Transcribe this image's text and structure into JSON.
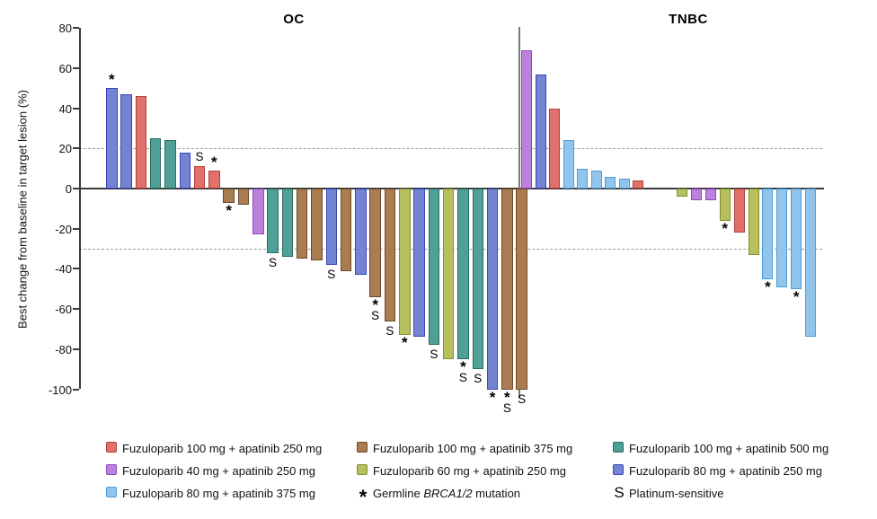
{
  "chart_data": {
    "type": "bar",
    "subtype": "waterfall",
    "title": "",
    "ylabel": "Best change from baseline in target lesion (%)",
    "ylim": [
      -100,
      80
    ],
    "yticks": [
      80,
      60,
      40,
      20,
      0,
      -20,
      -40,
      -60,
      -80,
      -100
    ],
    "reference_lines": [
      20,
      -30
    ],
    "grid": false,
    "legend_position": "bottom",
    "annotation_meanings": {
      "*": "Germline BRCA1/2 mutation",
      "S": "Platinum-sensitive"
    },
    "treatments": {
      "red": "Fuzuloparib 100 mg + apatinib 250 mg",
      "purple": "Fuzuloparib 40 mg + apatinib 250 mg",
      "lightblue": "Fuzuloparib 80 mg + apatinib 375 mg",
      "brown": "Fuzuloparib 100 mg + apatinib 375 mg",
      "yellow": "Fuzuloparib 60 mg + apatinib 250 mg",
      "teal": "Fuzuloparib 100 mg + apatinib 500 mg",
      "blue": "Fuzuloparib 80 mg + apatinib 250 mg"
    },
    "colors": {
      "red": {
        "fill": "#E0716A",
        "border": "#B23F3A"
      },
      "purple": {
        "fill": "#BC82DB",
        "border": "#8F44C4"
      },
      "lightblue": {
        "fill": "#92C5EC",
        "border": "#4D9CD8"
      },
      "brown": {
        "fill": "#A97D51",
        "border": "#6F4A28"
      },
      "yellow": {
        "fill": "#B7C05F",
        "border": "#848E2E"
      },
      "teal": {
        "fill": "#4FA096",
        "border": "#2A6B60"
      },
      "blue": {
        "fill": "#7584D2",
        "border": "#3847BE"
      }
    },
    "panels": [
      {
        "title": "OC",
        "bars": [
          {
            "value": 50,
            "color": "blue",
            "annotation": "*"
          },
          {
            "value": 47,
            "color": "blue",
            "annotation": ""
          },
          {
            "value": 46,
            "color": "red",
            "annotation": ""
          },
          {
            "value": 25,
            "color": "teal",
            "annotation": ""
          },
          {
            "value": 24,
            "color": "teal",
            "annotation": ""
          },
          {
            "value": 18,
            "color": "blue",
            "annotation": ""
          },
          {
            "value": 11,
            "color": "red",
            "annotation": "S"
          },
          {
            "value": 9,
            "color": "red",
            "annotation": "*"
          },
          {
            "value": -7,
            "color": "brown",
            "annotation": "*"
          },
          {
            "value": -8,
            "color": "brown",
            "annotation": ""
          },
          {
            "value": -23,
            "color": "purple",
            "annotation": ""
          },
          {
            "value": -32,
            "color": "teal",
            "annotation": "S"
          },
          {
            "value": -34,
            "color": "teal",
            "annotation": ""
          },
          {
            "value": -35,
            "color": "brown",
            "annotation": ""
          },
          {
            "value": -36,
            "color": "brown",
            "annotation": ""
          },
          {
            "value": -38,
            "color": "blue",
            "annotation": "S"
          },
          {
            "value": -41,
            "color": "brown",
            "annotation": ""
          },
          {
            "value": -43,
            "color": "blue",
            "annotation": ""
          },
          {
            "value": -54,
            "color": "brown",
            "annotation": "*S"
          },
          {
            "value": -66,
            "color": "brown",
            "annotation": "S"
          },
          {
            "value": -73,
            "color": "yellow",
            "annotation": "*"
          },
          {
            "value": -74,
            "color": "blue",
            "annotation": ""
          },
          {
            "value": -78,
            "color": "teal",
            "annotation": "S"
          },
          {
            "value": -85,
            "color": "yellow",
            "annotation": ""
          },
          {
            "value": -85,
            "color": "teal",
            "annotation": "*S"
          },
          {
            "value": -90,
            "color": "teal",
            "annotation": "S"
          },
          {
            "value": -100,
            "color": "blue",
            "annotation": "*"
          },
          {
            "value": -100,
            "color": "brown",
            "annotation": "*S"
          },
          {
            "value": -100,
            "color": "brown",
            "annotation": "S"
          }
        ]
      },
      {
        "title": "TNBC",
        "bars": [
          {
            "value": 69,
            "color": "purple",
            "annotation": ""
          },
          {
            "value": 57,
            "color": "blue",
            "annotation": ""
          },
          {
            "value": 40,
            "color": "red",
            "annotation": ""
          },
          {
            "value": 24,
            "color": "lightblue",
            "annotation": ""
          },
          {
            "value": 10,
            "color": "lightblue",
            "annotation": ""
          },
          {
            "value": 9,
            "color": "lightblue",
            "annotation": ""
          },
          {
            "value": 6,
            "color": "lightblue",
            "annotation": ""
          },
          {
            "value": 5,
            "color": "lightblue",
            "annotation": ""
          },
          {
            "value": 4,
            "color": "red",
            "annotation": ""
          },
          {
            "value": -4,
            "color": "yellow",
            "annotation": "",
            "gap_before": true
          },
          {
            "value": -6,
            "color": "purple",
            "annotation": ""
          },
          {
            "value": -6,
            "color": "purple",
            "annotation": ""
          },
          {
            "value": -16,
            "color": "yellow",
            "annotation": "*"
          },
          {
            "value": -22,
            "color": "red",
            "annotation": ""
          },
          {
            "value": -33,
            "color": "yellow",
            "annotation": ""
          },
          {
            "value": -45,
            "color": "lightblue",
            "annotation": "*"
          },
          {
            "value": -49,
            "color": "lightblue",
            "annotation": ""
          },
          {
            "value": -50,
            "color": "lightblue",
            "annotation": "*"
          },
          {
            "value": -74,
            "color": "lightblue",
            "annotation": ""
          }
        ]
      }
    ],
    "legend_columns": [
      [
        {
          "swatch": "red",
          "label": "Fuzuloparib 100 mg + apatinib 250 mg"
        },
        {
          "swatch": "purple",
          "label": "Fuzuloparib 40 mg + apatinib 250 mg"
        },
        {
          "swatch": "lightblue",
          "label": "Fuzuloparib 80 mg + apatinib 375 mg"
        }
      ],
      [
        {
          "swatch": "brown",
          "label": "Fuzuloparib 100 mg + apatinib 375 mg"
        },
        {
          "swatch": "yellow",
          "label": "Fuzuloparib 60 mg + apatinib 250 mg"
        },
        {
          "marker": "*",
          "label_pre": "Germline ",
          "label_italic": "BRCA1/2",
          "label_post": " mutation"
        }
      ],
      [
        {
          "swatch": "teal",
          "label": "Fuzuloparib 100 mg + apatinib 500 mg"
        },
        {
          "swatch": "blue",
          "label": "Fuzuloparib 80 mg + apatinib 250 mg"
        },
        {
          "marker": "S",
          "label": "Platinum-sensitive"
        }
      ]
    ]
  }
}
